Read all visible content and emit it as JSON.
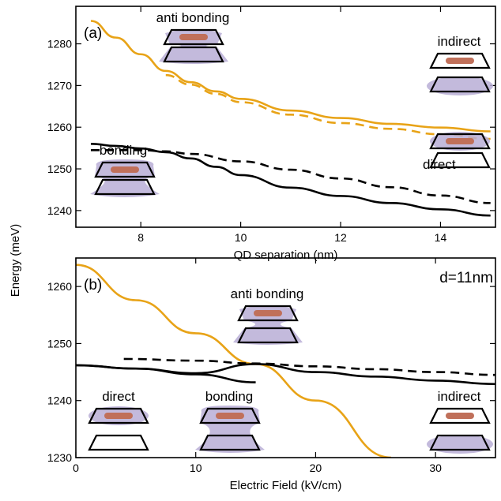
{
  "colors": {
    "orange": "#E8A317",
    "black": "#000000",
    "cloud": "#B9AED6",
    "dot": "#C0705A"
  },
  "shared_ylabel": "Energy (meV)",
  "chart_data": [
    {
      "type": "line",
      "panel_label": "(a)",
      "xlabel": "QD separation (nm)",
      "ylabel": "Energy (meV)",
      "xlim": [
        6.7,
        15.1
      ],
      "ylim": [
        1236,
        1289
      ],
      "xticks": [
        8,
        10,
        12,
        14
      ],
      "yticks": [
        1240,
        1250,
        1260,
        1270,
        1280
      ],
      "series": [
        {
          "color": "#E8A317",
          "dash": false,
          "x": [
            7,
            7.5,
            8,
            8.5,
            9,
            9.5,
            10,
            11,
            12,
            13,
            14,
            15
          ],
          "y": [
            1285.5,
            1281.5,
            1277.5,
            1273.5,
            1270.8,
            1268.6,
            1266.8,
            1264.0,
            1262.2,
            1260.8,
            1259.9,
            1259.0
          ]
        },
        {
          "color": "#E8A317",
          "dash": true,
          "x": [
            8.5,
            9,
            9.5,
            10,
            11,
            12,
            13,
            14,
            15
          ],
          "y": [
            1272.5,
            1270.2,
            1268.0,
            1266.0,
            1263.0,
            1261.0,
            1259.6,
            1258.3,
            1257.2
          ]
        },
        {
          "color": "#000000",
          "dash": false,
          "x": [
            7,
            7.5,
            8,
            8.5,
            9,
            9.5,
            10,
            11,
            12,
            13,
            14,
            15
          ],
          "y": [
            1256.0,
            1255.5,
            1254.9,
            1254.0,
            1252.5,
            1250.5,
            1248.5,
            1245.5,
            1243.5,
            1241.8,
            1240.3,
            1238.8
          ]
        },
        {
          "color": "#000000",
          "dash": true,
          "x": [
            7,
            8,
            8.5,
            9,
            10,
            11,
            12,
            13,
            14,
            15
          ],
          "y": [
            1254.5,
            1254.5,
            1254.2,
            1253.6,
            1251.8,
            1249.8,
            1247.7,
            1245.6,
            1243.6,
            1241.8
          ]
        }
      ],
      "annotations": [
        "anti bonding",
        "indirect",
        "bonding",
        "direct"
      ]
    },
    {
      "type": "line",
      "panel_label": "(b)",
      "inset_label": "d=11nm",
      "xlabel": "Electric Field (kV/cm)",
      "ylabel": "Energy (meV)",
      "xlim": [
        0,
        35
      ],
      "ylim": [
        1230,
        1265
      ],
      "xticks": [
        0,
        10,
        20,
        30
      ],
      "yticks": [
        1230,
        1240,
        1250,
        1260
      ],
      "series": [
        {
          "color": "#E8A317",
          "dash": false,
          "x": [
            0,
            5,
            10,
            15,
            20,
            26.3
          ],
          "y": [
            1263.8,
            1257.6,
            1251.8,
            1246.4,
            1240.0,
            1230.0
          ]
        },
        {
          "color": "#000000",
          "dash": false,
          "x": [
            0,
            5,
            10,
            15,
            20,
            25,
            30,
            35
          ],
          "y": [
            1246.2,
            1245.6,
            1244.8,
            1246.4,
            1245.0,
            1244.2,
            1243.5,
            1242.9
          ]
        },
        {
          "color": "#000000",
          "dash": false,
          "x": [
            0,
            5,
            10,
            15
          ],
          "y": [
            1246.2,
            1245.6,
            1244.6,
            1243.2
          ]
        },
        {
          "color": "#000000",
          "dash": true,
          "x": [
            4,
            10,
            15,
            20,
            25,
            30,
            35
          ],
          "y": [
            1247.3,
            1247.0,
            1246.5,
            1246.0,
            1245.5,
            1245.0,
            1244.5
          ]
        }
      ],
      "annotations": [
        "anti bonding",
        "direct",
        "bonding",
        "indirect"
      ]
    }
  ]
}
